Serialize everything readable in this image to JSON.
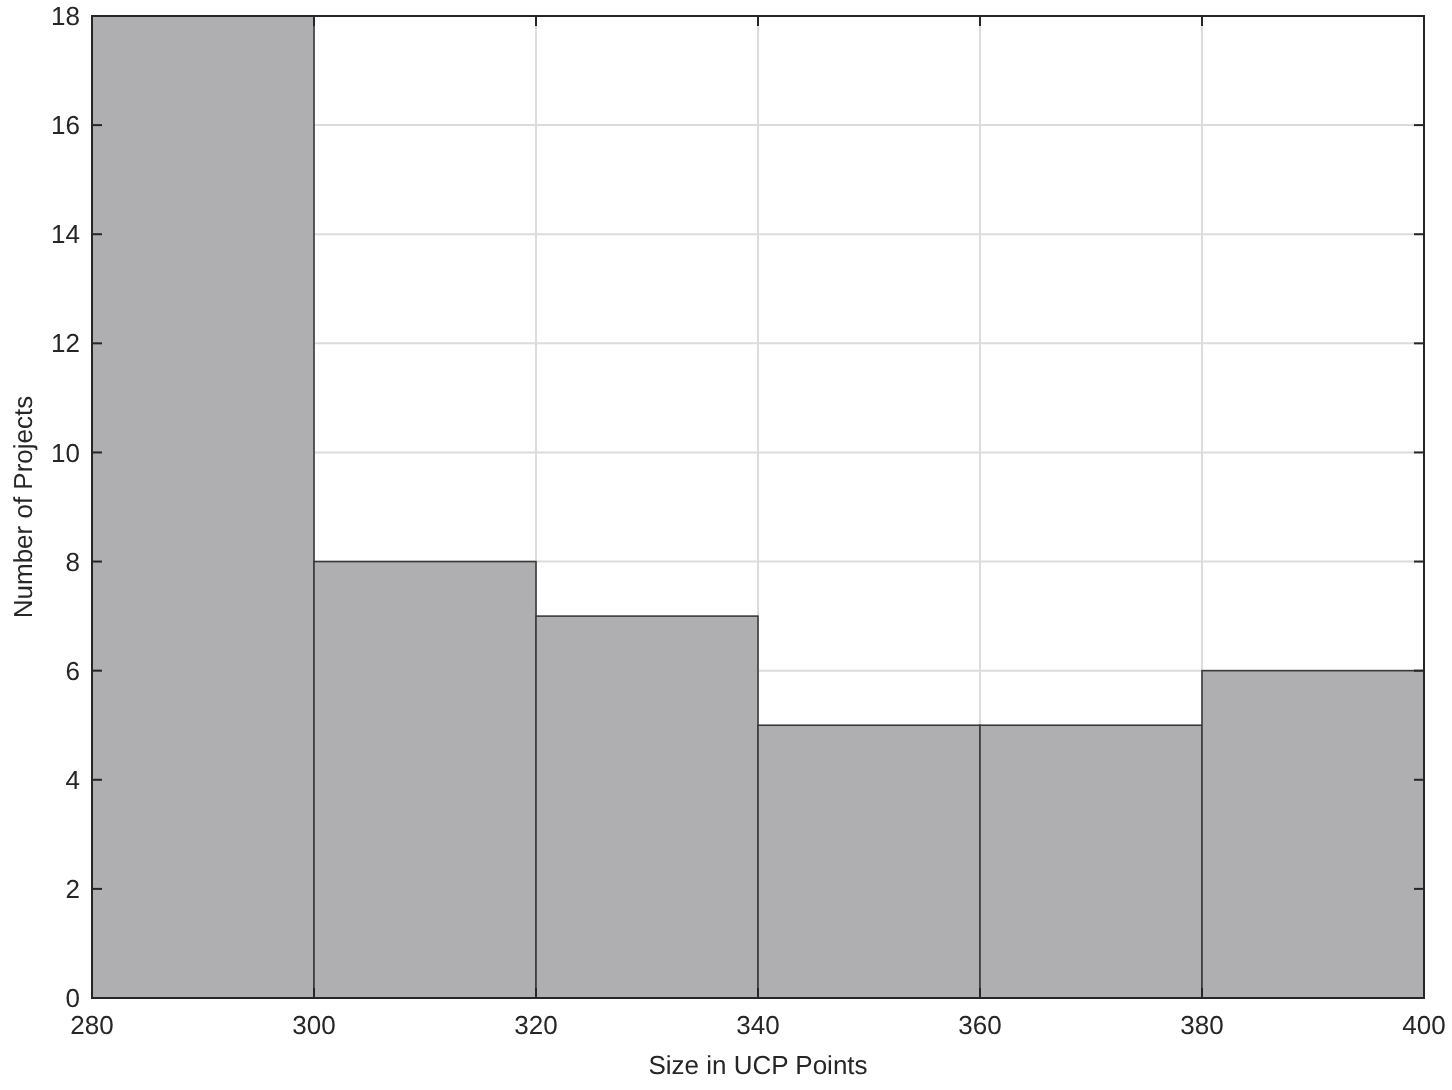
{
  "chart_data": {
    "type": "histogram",
    "xlabel": "Size in UCP Points",
    "ylabel": "Number of Projects",
    "bins": [
      280,
      300,
      320,
      340,
      360,
      380,
      400
    ],
    "values": [
      18,
      8,
      7,
      5,
      5,
      6
    ],
    "color": "#afafb1",
    "xlim": [
      280,
      400
    ],
    "xticks": [
      280,
      300,
      320,
      340,
      360,
      380,
      400
    ],
    "ylim": [
      0,
      18
    ],
    "yticks": [
      0,
      2,
      4,
      6,
      8,
      10,
      12,
      14,
      16,
      18
    ],
    "grid": true
  }
}
